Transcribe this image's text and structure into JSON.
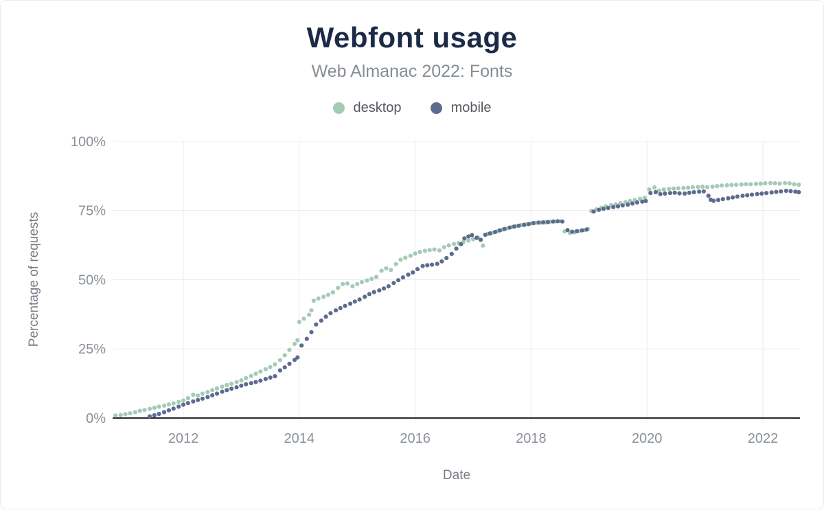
{
  "header": {
    "title": "Webfont usage",
    "subtitle": "Web Almanac 2022: Fonts"
  },
  "chart_data": {
    "type": "scatter",
    "title": "Webfont usage",
    "subtitle": "Web Almanac 2022: Fonts",
    "xlabel": "Date",
    "ylabel": "Percentage of requests",
    "xlim": [
      2010.7,
      2022.9
    ],
    "ylim": [
      0,
      100
    ],
    "x_ticks": [
      2012,
      2014,
      2016,
      2018,
      2020,
      2022
    ],
    "x_tick_labels": [
      "2012",
      "2014",
      "2016",
      "2018",
      "2020",
      "2022"
    ],
    "y_ticks": [
      0,
      25,
      50,
      75,
      100
    ],
    "y_tick_labels": [
      "0%",
      "25%",
      "50%",
      "75%",
      "100%"
    ],
    "grid": true,
    "legend_position": "top",
    "colors": {
      "title": "#1d2a47",
      "subtitle": "#868d95",
      "axis": "#24272c",
      "gridline": "#ebebee",
      "tick_label": "#8a9099",
      "desktop": "#a5cab5",
      "mobile": "#5c6b8e"
    },
    "series": [
      {
        "name": "desktop",
        "color": "#a5cab5",
        "points": [
          [
            2010.83,
            0.9
          ],
          [
            2010.92,
            1.1
          ],
          [
            2011.0,
            1.4
          ],
          [
            2011.08,
            1.7
          ],
          [
            2011.17,
            2.1
          ],
          [
            2011.25,
            2.6
          ],
          [
            2011.33,
            2.9
          ],
          [
            2011.42,
            3.3
          ],
          [
            2011.5,
            3.7
          ],
          [
            2011.58,
            4.1
          ],
          [
            2011.67,
            4.5
          ],
          [
            2011.75,
            4.9
          ],
          [
            2011.83,
            5.3
          ],
          [
            2011.92,
            5.8
          ],
          [
            2012.0,
            6.3
          ],
          [
            2012.08,
            7.2
          ],
          [
            2012.17,
            8.4
          ],
          [
            2012.25,
            8.1
          ],
          [
            2012.33,
            8.8
          ],
          [
            2012.42,
            9.4
          ],
          [
            2012.5,
            10.1
          ],
          [
            2012.58,
            10.7
          ],
          [
            2012.67,
            11.3
          ],
          [
            2012.75,
            11.9
          ],
          [
            2012.83,
            12.4
          ],
          [
            2012.92,
            13.0
          ],
          [
            2013.0,
            13.6
          ],
          [
            2013.08,
            14.4
          ],
          [
            2013.17,
            15.2
          ],
          [
            2013.25,
            16.0
          ],
          [
            2013.33,
            16.8
          ],
          [
            2013.42,
            17.6
          ],
          [
            2013.5,
            18.4
          ],
          [
            2013.58,
            19.4
          ],
          [
            2013.67,
            20.9
          ],
          [
            2013.75,
            22.7
          ],
          [
            2013.83,
            24.6
          ],
          [
            2013.92,
            26.8
          ],
          [
            2013.97,
            28.1
          ],
          [
            2014.0,
            34.7
          ],
          [
            2014.08,
            35.9
          ],
          [
            2014.17,
            37.3
          ],
          [
            2014.21,
            38.9
          ],
          [
            2014.25,
            42.4
          ],
          [
            2014.33,
            43.2
          ],
          [
            2014.42,
            43.8
          ],
          [
            2014.5,
            44.5
          ],
          [
            2014.58,
            45.4
          ],
          [
            2014.67,
            47.0
          ],
          [
            2014.75,
            48.4
          ],
          [
            2014.83,
            48.6
          ],
          [
            2014.92,
            47.6
          ],
          [
            2015.0,
            48.4
          ],
          [
            2015.08,
            49.1
          ],
          [
            2015.17,
            49.7
          ],
          [
            2015.25,
            50.3
          ],
          [
            2015.33,
            51.0
          ],
          [
            2015.42,
            53.2
          ],
          [
            2015.5,
            54.1
          ],
          [
            2015.58,
            53.5
          ],
          [
            2015.67,
            55.6
          ],
          [
            2015.75,
            57.2
          ],
          [
            2015.83,
            57.9
          ],
          [
            2015.92,
            58.6
          ],
          [
            2016.0,
            59.4
          ],
          [
            2016.08,
            60.0
          ],
          [
            2016.17,
            60.4
          ],
          [
            2016.25,
            60.7
          ],
          [
            2016.33,
            60.9
          ],
          [
            2016.42,
            60.6
          ],
          [
            2016.5,
            61.7
          ],
          [
            2016.58,
            62.4
          ],
          [
            2016.67,
            62.9
          ],
          [
            2016.75,
            63.2
          ],
          [
            2016.83,
            63.6
          ],
          [
            2016.92,
            64.1
          ],
          [
            2017.0,
            64.6
          ],
          [
            2017.08,
            65.3
          ],
          [
            2017.17,
            62.3
          ],
          [
            2017.25,
            66.5
          ],
          [
            2017.33,
            67.0
          ],
          [
            2017.42,
            67.5
          ],
          [
            2017.5,
            68.0
          ],
          [
            2017.58,
            68.5
          ],
          [
            2017.67,
            69.0
          ],
          [
            2017.75,
            69.4
          ],
          [
            2017.83,
            69.7
          ],
          [
            2017.92,
            70.0
          ],
          [
            2018.0,
            70.3
          ],
          [
            2018.08,
            70.5
          ],
          [
            2018.17,
            70.6
          ],
          [
            2018.25,
            70.7
          ],
          [
            2018.33,
            70.9
          ],
          [
            2018.42,
            71.0
          ],
          [
            2018.5,
            71.1
          ],
          [
            2018.58,
            67.4
          ],
          [
            2018.67,
            66.9
          ],
          [
            2018.75,
            67.1
          ],
          [
            2018.83,
            67.5
          ],
          [
            2018.92,
            67.9
          ],
          [
            2018.98,
            68.3
          ],
          [
            2019.04,
            74.8
          ],
          [
            2019.13,
            75.4
          ],
          [
            2019.21,
            76.0
          ],
          [
            2019.29,
            76.5
          ],
          [
            2019.38,
            76.9
          ],
          [
            2019.46,
            77.2
          ],
          [
            2019.54,
            77.6
          ],
          [
            2019.63,
            78.0
          ],
          [
            2019.71,
            78.4
          ],
          [
            2019.79,
            78.8
          ],
          [
            2019.88,
            79.2
          ],
          [
            2019.96,
            79.6
          ],
          [
            2020.04,
            82.6
          ],
          [
            2020.13,
            83.3
          ],
          [
            2020.21,
            82.2
          ],
          [
            2020.29,
            82.6
          ],
          [
            2020.38,
            82.8
          ],
          [
            2020.46,
            82.9
          ],
          [
            2020.54,
            83.0
          ],
          [
            2020.63,
            83.1
          ],
          [
            2020.71,
            83.2
          ],
          [
            2020.79,
            83.4
          ],
          [
            2020.88,
            83.5
          ],
          [
            2020.96,
            83.6
          ],
          [
            2021.04,
            83.4
          ],
          [
            2021.13,
            83.6
          ],
          [
            2021.21,
            83.8
          ],
          [
            2021.29,
            84.0
          ],
          [
            2021.38,
            84.1
          ],
          [
            2021.46,
            84.2
          ],
          [
            2021.54,
            84.3
          ],
          [
            2021.63,
            84.4
          ],
          [
            2021.71,
            84.5
          ],
          [
            2021.79,
            84.5
          ],
          [
            2021.88,
            84.6
          ],
          [
            2021.96,
            84.7
          ],
          [
            2022.04,
            84.8
          ],
          [
            2022.13,
            84.9
          ],
          [
            2022.21,
            84.8
          ],
          [
            2022.29,
            84.7
          ],
          [
            2022.38,
            84.9
          ],
          [
            2022.46,
            84.8
          ],
          [
            2022.54,
            84.5
          ],
          [
            2022.62,
            84.3
          ]
        ]
      },
      {
        "name": "mobile",
        "color": "#5c6b8e",
        "points": [
          [
            2011.42,
            0.6
          ],
          [
            2011.5,
            1.0
          ],
          [
            2011.58,
            1.5
          ],
          [
            2011.67,
            2.1
          ],
          [
            2011.75,
            2.8
          ],
          [
            2011.83,
            3.4
          ],
          [
            2011.92,
            4.1
          ],
          [
            2012.0,
            4.8
          ],
          [
            2012.08,
            5.4
          ],
          [
            2012.17,
            6.0
          ],
          [
            2012.25,
            6.5
          ],
          [
            2012.33,
            7.0
          ],
          [
            2012.42,
            7.6
          ],
          [
            2012.5,
            8.2
          ],
          [
            2012.58,
            8.8
          ],
          [
            2012.67,
            9.5
          ],
          [
            2012.75,
            10.1
          ],
          [
            2012.83,
            10.6
          ],
          [
            2012.92,
            11.1
          ],
          [
            2013.0,
            11.7
          ],
          [
            2013.08,
            12.2
          ],
          [
            2013.17,
            12.6
          ],
          [
            2013.25,
            13.0
          ],
          [
            2013.33,
            13.5
          ],
          [
            2013.42,
            14.1
          ],
          [
            2013.5,
            14.6
          ],
          [
            2013.58,
            15.1
          ],
          [
            2013.67,
            17.2
          ],
          [
            2013.75,
            18.3
          ],
          [
            2013.83,
            19.6
          ],
          [
            2013.92,
            21.0
          ],
          [
            2013.97,
            21.9
          ],
          [
            2014.04,
            26.2
          ],
          [
            2014.13,
            28.6
          ],
          [
            2014.21,
            31.0
          ],
          [
            2014.29,
            33.8
          ],
          [
            2014.38,
            35.2
          ],
          [
            2014.46,
            36.6
          ],
          [
            2014.54,
            37.9
          ],
          [
            2014.63,
            38.9
          ],
          [
            2014.71,
            39.7
          ],
          [
            2014.79,
            40.5
          ],
          [
            2014.88,
            41.3
          ],
          [
            2014.96,
            42.1
          ],
          [
            2015.04,
            42.8
          ],
          [
            2015.13,
            43.8
          ],
          [
            2015.21,
            44.8
          ],
          [
            2015.29,
            45.5
          ],
          [
            2015.38,
            46.1
          ],
          [
            2015.46,
            46.8
          ],
          [
            2015.54,
            47.6
          ],
          [
            2015.63,
            48.8
          ],
          [
            2015.71,
            49.8
          ],
          [
            2015.79,
            50.8
          ],
          [
            2015.88,
            51.8
          ],
          [
            2015.96,
            52.6
          ],
          [
            2016.04,
            53.8
          ],
          [
            2016.13,
            54.9
          ],
          [
            2016.21,
            55.2
          ],
          [
            2016.29,
            55.4
          ],
          [
            2016.38,
            55.7
          ],
          [
            2016.46,
            56.6
          ],
          [
            2016.54,
            57.8
          ],
          [
            2016.63,
            59.3
          ],
          [
            2016.71,
            61.2
          ],
          [
            2016.79,
            62.8
          ],
          [
            2016.85,
            64.9
          ],
          [
            2016.92,
            65.6
          ],
          [
            2016.98,
            66.1
          ],
          [
            2017.06,
            65.1
          ],
          [
            2017.13,
            64.4
          ],
          [
            2017.21,
            66.2
          ],
          [
            2017.29,
            66.7
          ],
          [
            2017.38,
            67.2
          ],
          [
            2017.46,
            67.8
          ],
          [
            2017.54,
            68.3
          ],
          [
            2017.63,
            68.8
          ],
          [
            2017.71,
            69.2
          ],
          [
            2017.79,
            69.5
          ],
          [
            2017.88,
            69.8
          ],
          [
            2017.96,
            70.1
          ],
          [
            2018.04,
            70.4
          ],
          [
            2018.13,
            70.6
          ],
          [
            2018.21,
            70.7
          ],
          [
            2018.29,
            70.8
          ],
          [
            2018.38,
            71.0
          ],
          [
            2018.46,
            71.1
          ],
          [
            2018.54,
            71.0
          ],
          [
            2018.63,
            67.9
          ],
          [
            2018.71,
            67.3
          ],
          [
            2018.79,
            67.5
          ],
          [
            2018.88,
            67.8
          ],
          [
            2018.96,
            68.1
          ],
          [
            2019.08,
            74.6
          ],
          [
            2019.17,
            75.2
          ],
          [
            2019.25,
            75.6
          ],
          [
            2019.33,
            75.9
          ],
          [
            2019.42,
            76.2
          ],
          [
            2019.5,
            76.5
          ],
          [
            2019.58,
            76.8
          ],
          [
            2019.67,
            77.1
          ],
          [
            2019.75,
            77.5
          ],
          [
            2019.83,
            77.9
          ],
          [
            2019.92,
            78.2
          ],
          [
            2019.98,
            78.4
          ],
          [
            2020.06,
            81.3
          ],
          [
            2020.15,
            81.6
          ],
          [
            2020.23,
            80.9
          ],
          [
            2020.31,
            81.1
          ],
          [
            2020.4,
            81.3
          ],
          [
            2020.48,
            81.4
          ],
          [
            2020.56,
            81.2
          ],
          [
            2020.65,
            81.1
          ],
          [
            2020.73,
            81.4
          ],
          [
            2020.81,
            81.6
          ],
          [
            2020.9,
            81.8
          ],
          [
            2020.98,
            81.9
          ],
          [
            2021.06,
            80.3
          ],
          [
            2021.1,
            78.9
          ],
          [
            2021.15,
            78.5
          ],
          [
            2021.23,
            78.8
          ],
          [
            2021.31,
            79.1
          ],
          [
            2021.4,
            79.4
          ],
          [
            2021.48,
            79.7
          ],
          [
            2021.56,
            80.0
          ],
          [
            2021.65,
            80.3
          ],
          [
            2021.73,
            80.5
          ],
          [
            2021.81,
            80.7
          ],
          [
            2021.9,
            80.9
          ],
          [
            2021.98,
            81.1
          ],
          [
            2022.06,
            81.3
          ],
          [
            2022.15,
            81.5
          ],
          [
            2022.23,
            81.7
          ],
          [
            2022.31,
            81.9
          ],
          [
            2022.4,
            82.1
          ],
          [
            2022.48,
            82.0
          ],
          [
            2022.56,
            81.8
          ],
          [
            2022.62,
            81.6
          ]
        ]
      }
    ]
  }
}
